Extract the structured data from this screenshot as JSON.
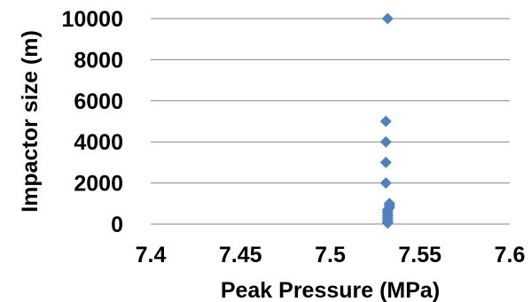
{
  "chart_data": {
    "type": "scatter",
    "title": "",
    "xlabel": "Peak Pressure (MPa)",
    "ylabel": "Impactor size (m)",
    "xlim": [
      7.4,
      7.6
    ],
    "ylim": [
      0,
      10000
    ],
    "x_ticks": [
      "7.4",
      "7.45",
      "7.5",
      "7.55",
      "7.6"
    ],
    "y_ticks": [
      "0",
      "2000",
      "4000",
      "6000",
      "8000",
      "10000"
    ],
    "grid": "horizontal",
    "legend": "none",
    "marker": "diamond",
    "color": "#4F81BD",
    "series": [
      {
        "points": [
          {
            "x": 7.532,
            "y": 10000
          },
          {
            "x": 7.531,
            "y": 5000
          },
          {
            "x": 7.531,
            "y": 4000
          },
          {
            "x": 7.531,
            "y": 3000
          },
          {
            "x": 7.531,
            "y": 2000
          },
          {
            "x": 7.533,
            "y": 1000
          },
          {
            "x": 7.533,
            "y": 900
          },
          {
            "x": 7.533,
            "y": 800
          },
          {
            "x": 7.532,
            "y": 700
          },
          {
            "x": 7.532,
            "y": 600
          },
          {
            "x": 7.532,
            "y": 500
          },
          {
            "x": 7.532,
            "y": 400
          },
          {
            "x": 7.532,
            "y": 300
          },
          {
            "x": 7.532,
            "y": 200
          },
          {
            "x": 7.532,
            "y": 100
          },
          {
            "x": 7.532,
            "y": 50
          }
        ]
      }
    ]
  }
}
